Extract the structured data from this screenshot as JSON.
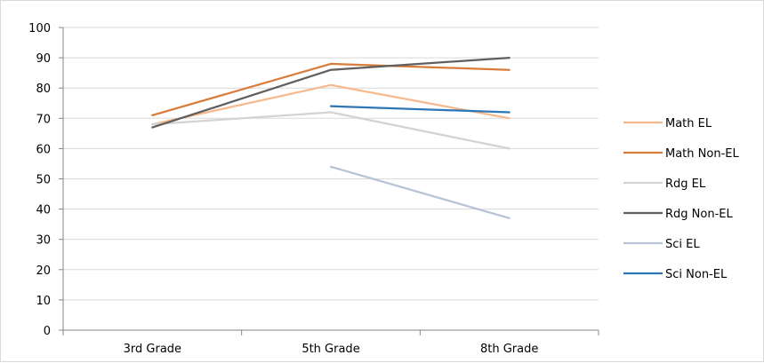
{
  "chart_data": {
    "type": "line",
    "title": "",
    "xlabel": "",
    "ylabel": "",
    "ylim": [
      0,
      100
    ],
    "ytick_step": 10,
    "grid": true,
    "legend_position": "right",
    "categories": [
      "3rd Grade",
      "5th Grade",
      "8th Grade"
    ],
    "series": [
      {
        "name": "Math EL",
        "color": "#F7B98B",
        "values": [
          68,
          81,
          70
        ]
      },
      {
        "name": "Math Non-EL",
        "color": "#D97B3A",
        "values": [
          71,
          88,
          86
        ]
      },
      {
        "name": "Rdg EL",
        "color": "#D3D3D3",
        "values": [
          68,
          72,
          60
        ]
      },
      {
        "name": "Rdg Non-EL",
        "color": "#5F5F5F",
        "values": [
          67,
          86,
          90
        ]
      },
      {
        "name": "Sci EL",
        "color": "#B7C3D6",
        "values": [
          null,
          54,
          37
        ]
      },
      {
        "name": "Sci Non-EL",
        "color": "#2E75B6",
        "values": [
          null,
          74,
          72
        ]
      }
    ]
  }
}
